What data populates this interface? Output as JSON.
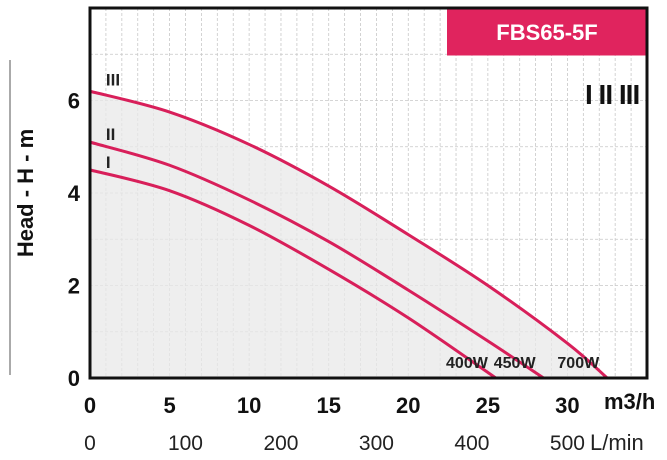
{
  "chart_data": {
    "type": "line",
    "title": "FBS65-5F",
    "ylabel": "Head - H - m",
    "xlabel": "m3/h",
    "xlabel_secondary": "L/min",
    "xlim": [
      0,
      35
    ],
    "ylim": [
      0,
      8
    ],
    "x_ticks": [
      "0",
      "5",
      "10",
      "15",
      "20",
      "25",
      "30"
    ],
    "x_ticks_secondary": [
      "0",
      "100",
      "200",
      "300",
      "400",
      "500"
    ],
    "y_ticks": [
      "0",
      "2",
      "4",
      "6"
    ],
    "grid": true,
    "series": [
      {
        "name": "I",
        "power": "400W",
        "x": [
          0,
          5,
          10,
          15,
          20,
          25.5
        ],
        "y": [
          4.5,
          4.05,
          3.3,
          2.35,
          1.3,
          0
        ]
      },
      {
        "name": "II",
        "power": "450W",
        "x": [
          0,
          5,
          10,
          15,
          20,
          25,
          28.5
        ],
        "y": [
          5.1,
          4.6,
          3.85,
          2.95,
          1.9,
          0.8,
          0
        ]
      },
      {
        "name": "III",
        "power": "700W",
        "x": [
          0,
          5,
          10,
          15,
          20,
          25,
          30,
          32.5
        ],
        "y": [
          6.2,
          5.75,
          5.05,
          4.15,
          3.1,
          2.0,
          0.75,
          0
        ]
      }
    ],
    "speed_legend": "I II III",
    "colors": {
      "curve": "#d81f5a",
      "title_bg": "#e0245e",
      "shade": "#e8e8e8",
      "grid": "#c8c8c8"
    }
  }
}
